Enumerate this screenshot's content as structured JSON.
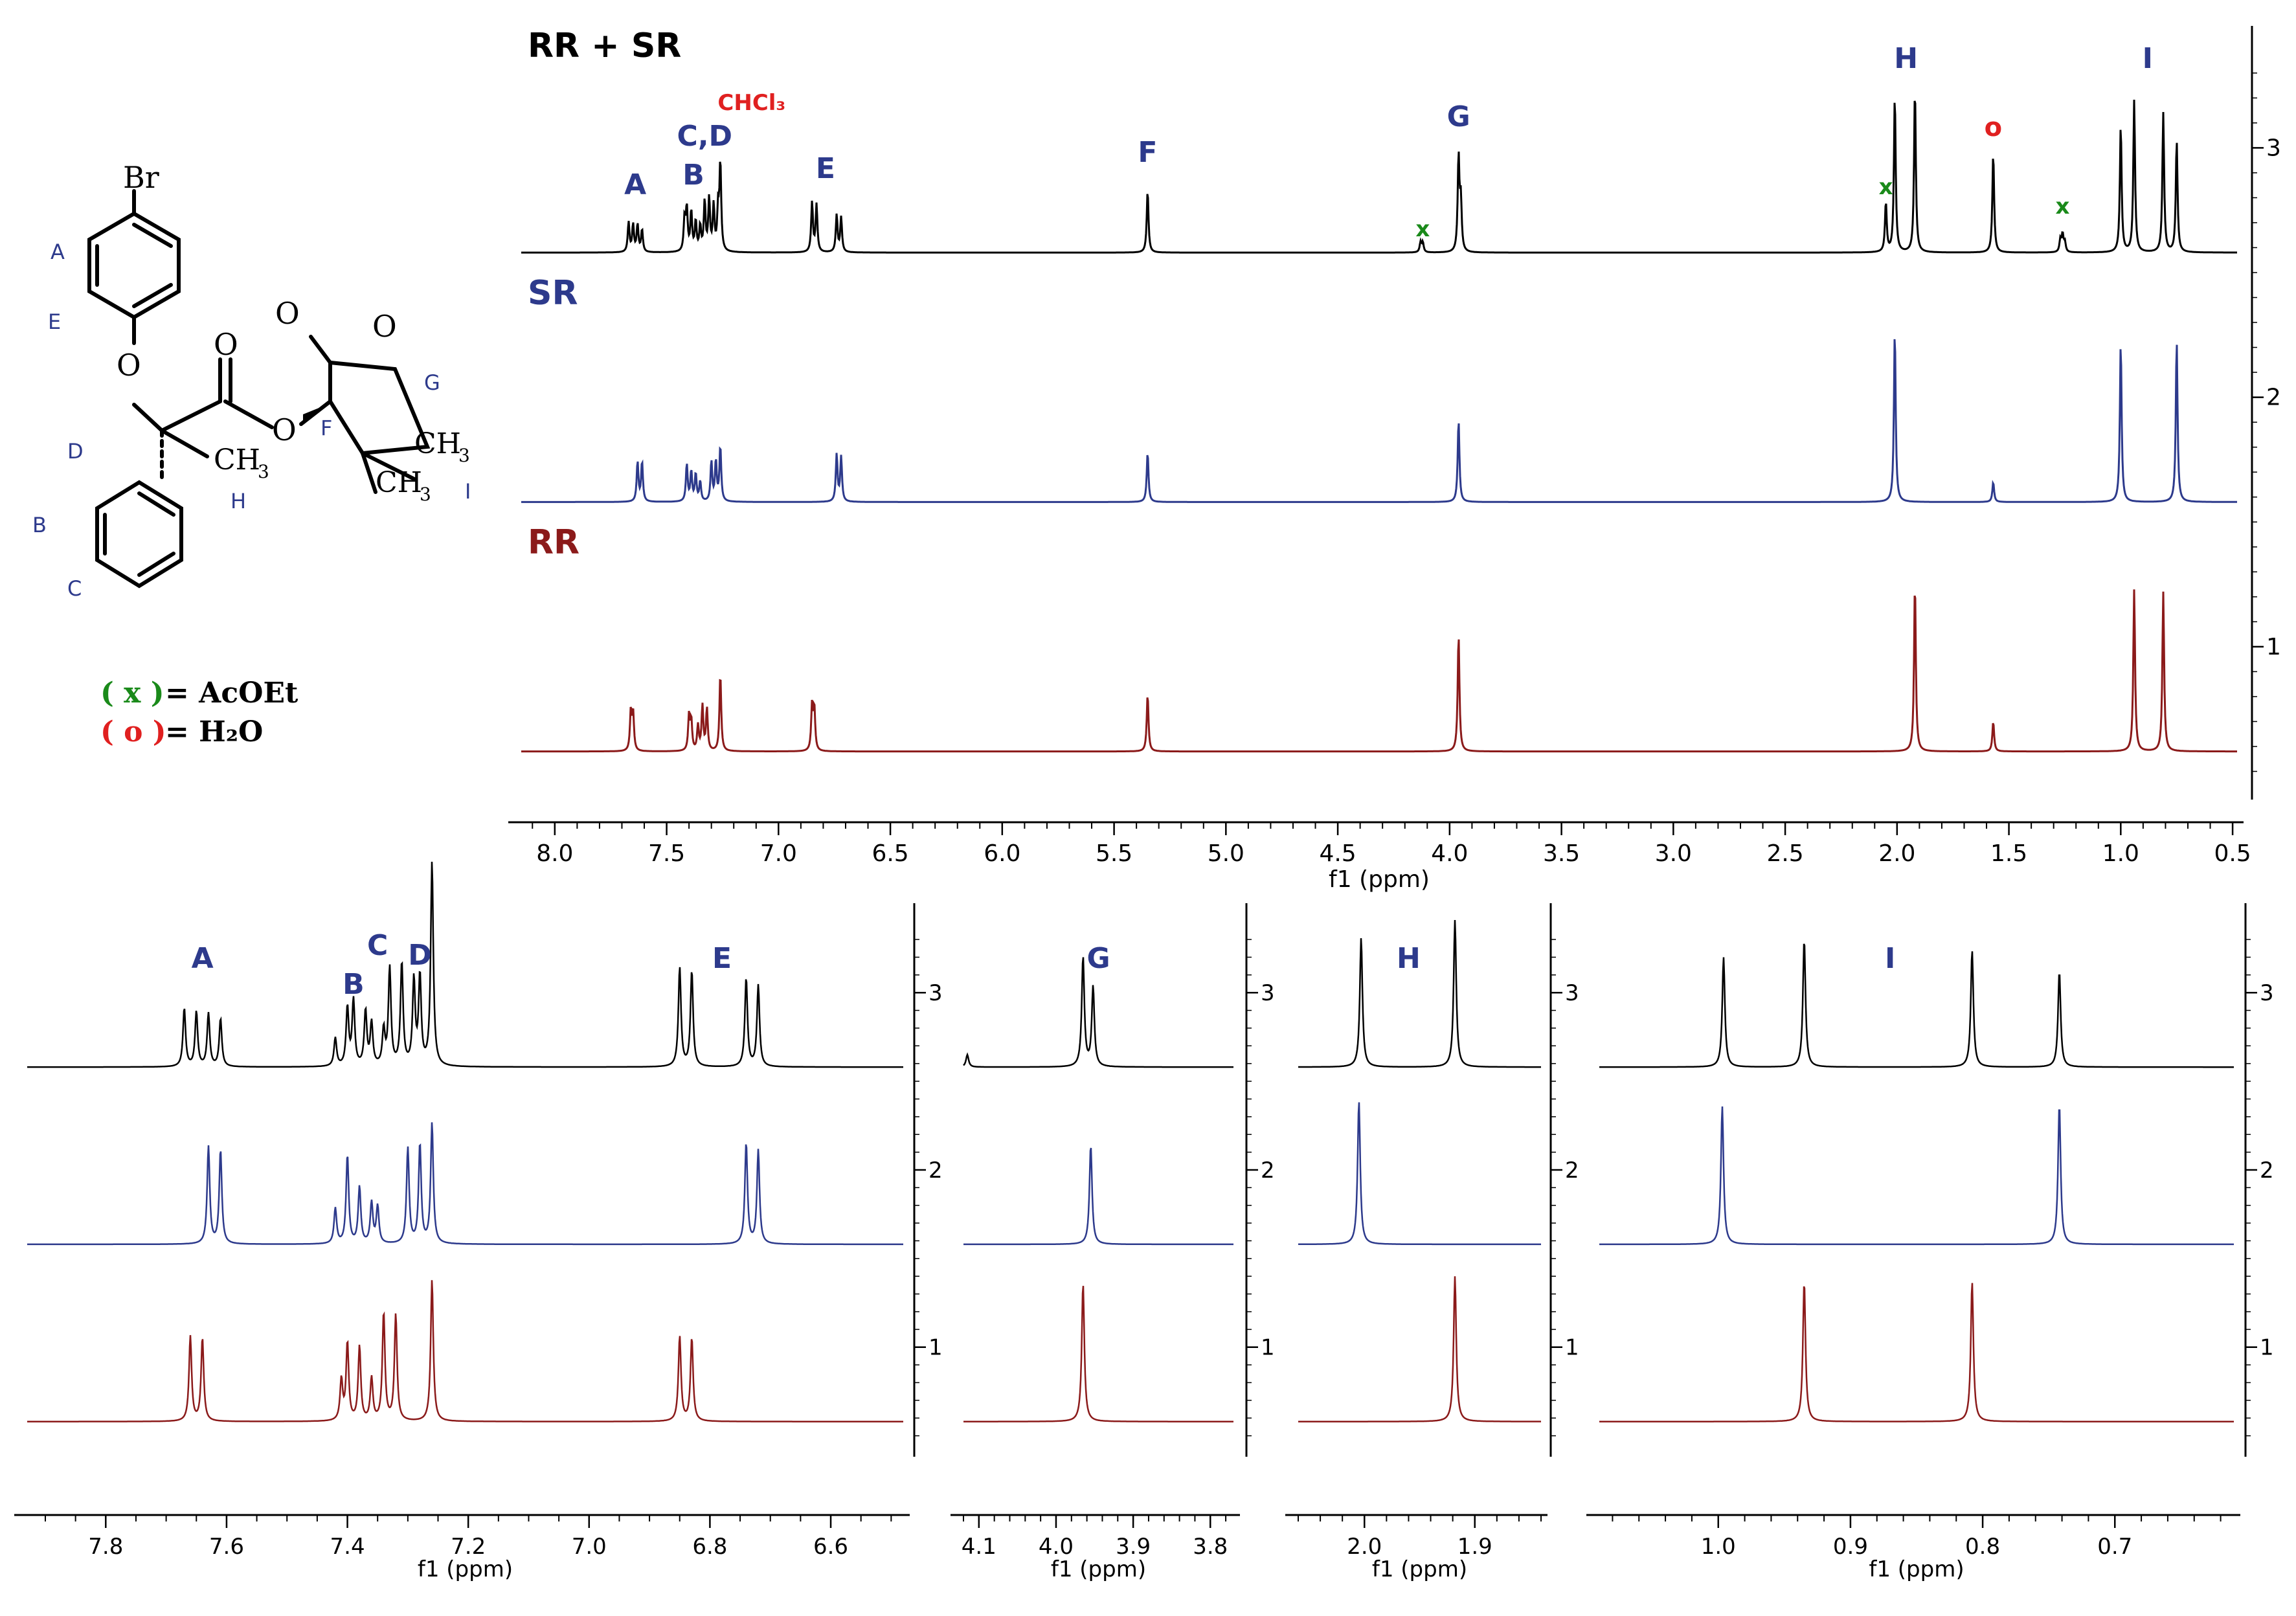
{
  "structure": {
    "labels": {
      "br": "Br",
      "A": "A",
      "E": "E",
      "D": "D",
      "B": "B",
      "C": "C",
      "H": "H",
      "F": "F",
      "G": "G",
      "I": "I",
      "o1": "O",
      "o2": "O",
      "o3": "O",
      "o4": "O",
      "o5": "O",
      "ch3a": "CH",
      "ch3b": "CH",
      "ch3c": "CH",
      "sub3": "3"
    }
  },
  "legend": {
    "x_open": "( x )",
    "x_text": "= AcOEt",
    "o_open": "( o )",
    "o_text": "= H₂O"
  },
  "colors": {
    "rrsr": "#000000",
    "sr": "#2d3a8c",
    "rr": "#8b1a1a",
    "label_blue": "#2d3a8c",
    "impurity_x": "#1a8a1a",
    "impurity_o": "#e02020"
  },
  "chart_data": [
    {
      "type": "line",
      "title": "",
      "xlabel": "f1 (ppm)",
      "xlim": [
        8.15,
        0.48
      ],
      "x_ticks": [
        "8.0",
        "7.5",
        "7.0",
        "6.5",
        "6.0",
        "5.5",
        "5.0",
        "4.5",
        "4.0",
        "3.5",
        "3.0",
        "2.5",
        "2.0",
        "1.5",
        "1.0",
        "0.5"
      ],
      "x_tick_values": [
        8.0,
        7.5,
        7.0,
        6.5,
        6.0,
        5.5,
        5.0,
        4.5,
        4.0,
        3.5,
        3.0,
        2.5,
        2.0,
        1.5,
        1.0,
        0.5
      ],
      "ylim": [
        0.4,
        3.45
      ],
      "y_ticks": [
        "1",
        "2",
        "3"
      ],
      "y_tick_values": [
        1,
        2,
        3
      ],
      "series": [
        {
          "name": "RR + SR",
          "color": "#000000",
          "baseline": 2.58,
          "peaks": [
            [
              7.67,
              0.12
            ],
            [
              7.65,
              0.11
            ],
            [
              7.63,
              0.11
            ],
            [
              7.61,
              0.09
            ],
            [
              7.42,
              0.13
            ],
            [
              7.41,
              0.17
            ],
            [
              7.39,
              0.16
            ],
            [
              7.37,
              0.12
            ],
            [
              7.35,
              0.1
            ],
            [
              7.33,
              0.2
            ],
            [
              7.31,
              0.21
            ],
            [
              7.29,
              0.18
            ],
            [
              7.27,
              0.16
            ],
            [
              7.26,
              0.35
            ],
            [
              6.85,
              0.2
            ],
            [
              6.83,
              0.19
            ],
            [
              6.74,
              0.15
            ],
            [
              6.72,
              0.14
            ],
            [
              5.35,
              0.25
            ],
            [
              4.13,
              0.04
            ],
            [
              4.12,
              0.04
            ],
            [
              3.96,
              0.38
            ],
            [
              3.95,
              0.2
            ],
            [
              2.05,
              0.2
            ],
            [
              2.01,
              0.63
            ],
            [
              1.92,
              0.66
            ],
            [
              1.57,
              0.4
            ],
            [
              1.27,
              0.05
            ],
            [
              1.26,
              0.07
            ],
            [
              1.25,
              0.04
            ],
            [
              1.0,
              0.51
            ],
            [
              0.94,
              0.61
            ],
            [
              0.81,
              0.56
            ],
            [
              0.75,
              0.45
            ]
          ]
        },
        {
          "name": "SR",
          "color": "#2d3a8c",
          "baseline": 1.58,
          "peaks": [
            [
              7.63,
              0.16
            ],
            [
              7.61,
              0.16
            ],
            [
              7.41,
              0.15
            ],
            [
              7.39,
              0.12
            ],
            [
              7.37,
              0.11
            ],
            [
              7.35,
              0.08
            ],
            [
              7.3,
              0.16
            ],
            [
              7.28,
              0.16
            ],
            [
              7.26,
              0.22
            ],
            [
              6.74,
              0.19
            ],
            [
              6.72,
              0.18
            ],
            [
              5.35,
              0.2
            ],
            [
              3.96,
              0.33
            ],
            [
              2.01,
              0.69
            ],
            [
              1.57,
              0.08
            ],
            [
              1.0,
              0.64
            ],
            [
              0.75,
              0.65
            ]
          ]
        },
        {
          "name": "RR",
          "color": "#8b1a1a",
          "baseline": 0.58,
          "peaks": [
            [
              7.66,
              0.16
            ],
            [
              7.65,
              0.15
            ],
            [
              7.4,
              0.14
            ],
            [
              7.39,
              0.12
            ],
            [
              7.36,
              0.1
            ],
            [
              7.34,
              0.18
            ],
            [
              7.32,
              0.17
            ],
            [
              7.26,
              0.31
            ],
            [
              6.85,
              0.18
            ],
            [
              6.84,
              0.17
            ],
            [
              5.35,
              0.23
            ],
            [
              3.96,
              0.47
            ],
            [
              1.92,
              0.68
            ],
            [
              1.57,
              0.12
            ],
            [
              0.94,
              0.65
            ],
            [
              0.81,
              0.64
            ]
          ]
        }
      ],
      "annotations": [
        {
          "text": "RR + SR",
          "color": "#000000"
        },
        {
          "text": "SR",
          "color": "#2d3a8c"
        },
        {
          "text": "RR",
          "color": "#8b1a1a"
        },
        {
          "text": "A",
          "color": "#2d3a8c"
        },
        {
          "text": "B",
          "color": "#2d3a8c"
        },
        {
          "text": "C,D",
          "color": "#2d3a8c"
        },
        {
          "text": "CHCl₃",
          "color": "#e02020"
        },
        {
          "text": "E",
          "color": "#2d3a8c"
        },
        {
          "text": "F",
          "color": "#2d3a8c"
        },
        {
          "text": "x",
          "color": "#1a8a1a"
        },
        {
          "text": "G",
          "color": "#2d3a8c"
        },
        {
          "text": "x",
          "color": "#1a8a1a"
        },
        {
          "text": "H",
          "color": "#2d3a8c"
        },
        {
          "text": "o",
          "color": "#e02020"
        },
        {
          "text": "x",
          "color": "#1a8a1a"
        },
        {
          "text": "I",
          "color": "#2d3a8c"
        }
      ]
    },
    {
      "type": "line",
      "title": "",
      "xlabel": "f1 (ppm)",
      "xlim": [
        7.93,
        6.48
      ],
      "x_ticks": [
        "7.8",
        "7.6",
        "7.4",
        "7.2",
        "7.0",
        "6.8",
        "6.6"
      ],
      "x_tick_values": [
        7.8,
        7.6,
        7.4,
        7.2,
        7.0,
        6.8,
        6.6
      ],
      "ylim": [
        0.4,
        3.45
      ],
      "y_ticks": [
        "1",
        "2",
        "3"
      ],
      "y_tick_values": [
        1,
        2,
        3
      ],
      "series": [
        {
          "name": "RR + SR",
          "color": "#000000",
          "baseline": 2.58,
          "peaks": [
            [
              7.67,
              0.33
            ],
            [
              7.65,
              0.31
            ],
            [
              7.63,
              0.3
            ],
            [
              7.61,
              0.27
            ],
            [
              7.42,
              0.16
            ],
            [
              7.4,
              0.33
            ],
            [
              7.39,
              0.37
            ],
            [
              7.37,
              0.31
            ],
            [
              7.36,
              0.24
            ],
            [
              7.34,
              0.2
            ],
            [
              7.33,
              0.55
            ],
            [
              7.31,
              0.58
            ],
            [
              7.29,
              0.48
            ],
            [
              7.28,
              0.5
            ],
            [
              7.26,
              1.15
            ],
            [
              6.85,
              0.56
            ],
            [
              6.83,
              0.54
            ],
            [
              6.74,
              0.5
            ],
            [
              6.72,
              0.46
            ]
          ]
        },
        {
          "name": "SR",
          "color": "#2d3a8c",
          "baseline": 1.58,
          "peaks": [
            [
              7.63,
              0.55
            ],
            [
              7.61,
              0.53
            ],
            [
              7.42,
              0.2
            ],
            [
              7.4,
              0.5
            ],
            [
              7.38,
              0.32
            ],
            [
              7.36,
              0.23
            ],
            [
              7.35,
              0.21
            ],
            [
              7.3,
              0.54
            ],
            [
              7.28,
              0.56
            ],
            [
              7.26,
              0.68
            ],
            [
              6.74,
              0.57
            ],
            [
              6.72,
              0.53
            ]
          ]
        },
        {
          "name": "RR",
          "color": "#8b1a1a",
          "baseline": 0.58,
          "peaks": [
            [
              7.66,
              0.48
            ],
            [
              7.64,
              0.47
            ],
            [
              7.41,
              0.23
            ],
            [
              7.4,
              0.44
            ],
            [
              7.38,
              0.42
            ],
            [
              7.36,
              0.24
            ],
            [
              7.34,
              0.61
            ],
            [
              7.32,
              0.6
            ],
            [
              7.26,
              0.8
            ],
            [
              6.85,
              0.48
            ],
            [
              6.83,
              0.47
            ]
          ]
        }
      ],
      "annotations": [
        {
          "text": "A",
          "color": "#2d3a8c"
        },
        {
          "text": "C",
          "color": "#2d3a8c"
        },
        {
          "text": "B",
          "color": "#2d3a8c"
        },
        {
          "text": "D",
          "color": "#2d3a8c"
        },
        {
          "text": "E",
          "color": "#2d3a8c"
        }
      ]
    },
    {
      "type": "line",
      "title": "",
      "xlabel": "f1 (ppm)",
      "xlim": [
        4.12,
        3.77
      ],
      "x_ticks": [
        "4.1",
        "4.0",
        "3.9",
        "3.8"
      ],
      "x_tick_values": [
        4.1,
        4.0,
        3.9,
        3.8
      ],
      "ylim": [
        0.4,
        3.45
      ],
      "y_ticks": [
        "1",
        "2",
        "3"
      ],
      "y_tick_values": [
        1,
        2,
        3
      ],
      "series": [
        {
          "name": "RR + SR",
          "color": "#000000",
          "baseline": 2.58,
          "peaks": [
            [
              4.115,
              0.07
            ],
            [
              3.965,
              0.62
            ],
            [
              3.952,
              0.45
            ]
          ]
        },
        {
          "name": "SR",
          "color": "#2d3a8c",
          "baseline": 1.58,
          "peaks": [
            [
              3.955,
              0.56
            ]
          ]
        },
        {
          "name": "RR",
          "color": "#8b1a1a",
          "baseline": 0.58,
          "peaks": [
            [
              3.965,
              0.78
            ]
          ]
        }
      ],
      "annotations": [
        {
          "text": "G",
          "color": "#2d3a8c"
        }
      ]
    },
    {
      "type": "line",
      "title": "",
      "xlabel": "f1 (ppm)",
      "xlim": [
        2.06,
        1.84
      ],
      "x_ticks": [
        "2.0",
        "1.9"
      ],
      "x_tick_values": [
        2.0,
        1.9
      ],
      "ylim": [
        0.4,
        3.45
      ],
      "y_ticks": [
        "1",
        "2",
        "3"
      ],
      "y_tick_values": [
        1,
        2,
        3
      ],
      "series": [
        {
          "name": "RR + SR",
          "color": "#000000",
          "baseline": 2.58,
          "peaks": [
            [
              2.003,
              0.73
            ],
            [
              1.918,
              0.83
            ]
          ]
        },
        {
          "name": "SR",
          "color": "#2d3a8c",
          "baseline": 1.58,
          "peaks": [
            [
              2.005,
              0.81
            ]
          ]
        },
        {
          "name": "RR",
          "color": "#8b1a1a",
          "baseline": 0.58,
          "peaks": [
            [
              1.918,
              0.82
            ]
          ]
        }
      ],
      "annotations": [
        {
          "text": "H",
          "color": "#2d3a8c"
        }
      ]
    },
    {
      "type": "line",
      "title": "",
      "xlabel": "f1 (ppm)",
      "xlim": [
        1.09,
        0.61
      ],
      "x_ticks": [
        "1.0",
        "0.9",
        "0.8",
        "0.7"
      ],
      "x_tick_values": [
        1.0,
        0.9,
        0.8,
        0.7
      ],
      "ylim": [
        0.4,
        3.45
      ],
      "y_ticks": [
        "1",
        "2",
        "3"
      ],
      "y_tick_values": [
        1,
        2,
        3
      ],
      "series": [
        {
          "name": "RR + SR",
          "color": "#000000",
          "baseline": 2.58,
          "peaks": [
            [
              0.996,
              0.62
            ],
            [
              0.935,
              0.72
            ],
            [
              0.808,
              0.66
            ],
            [
              0.742,
              0.54
            ]
          ]
        },
        {
          "name": "SR",
          "color": "#2d3a8c",
          "baseline": 1.58,
          "peaks": [
            [
              0.997,
              0.78
            ],
            [
              0.742,
              0.79
            ]
          ]
        },
        {
          "name": "RR",
          "color": "#8b1a1a",
          "baseline": 0.58,
          "peaks": [
            [
              0.935,
              0.79
            ],
            [
              0.808,
              0.79
            ]
          ]
        }
      ],
      "annotations": [
        {
          "text": "I",
          "color": "#2d3a8c"
        }
      ]
    }
  ]
}
